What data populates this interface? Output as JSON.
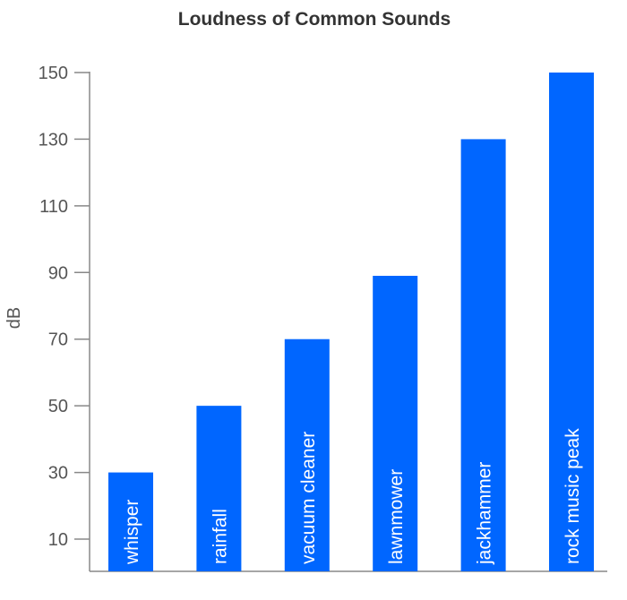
{
  "chart_data": {
    "type": "bar",
    "title": "Loudness of Common Sounds",
    "xlabel": "",
    "ylabel": "dB",
    "categories": [
      "whisper",
      "rainfall",
      "vacuum cleaner",
      "lawnmower",
      "jackhammer",
      "rock music peak"
    ],
    "values": [
      30,
      50,
      70,
      89,
      130,
      150
    ],
    "yticks": [
      10,
      30,
      50,
      70,
      90,
      110,
      130,
      150
    ],
    "ylim": [
      0,
      150
    ],
    "bar_color": "#0066ff",
    "grid": false,
    "legend": "none",
    "category_labels_inside_bars": true
  }
}
